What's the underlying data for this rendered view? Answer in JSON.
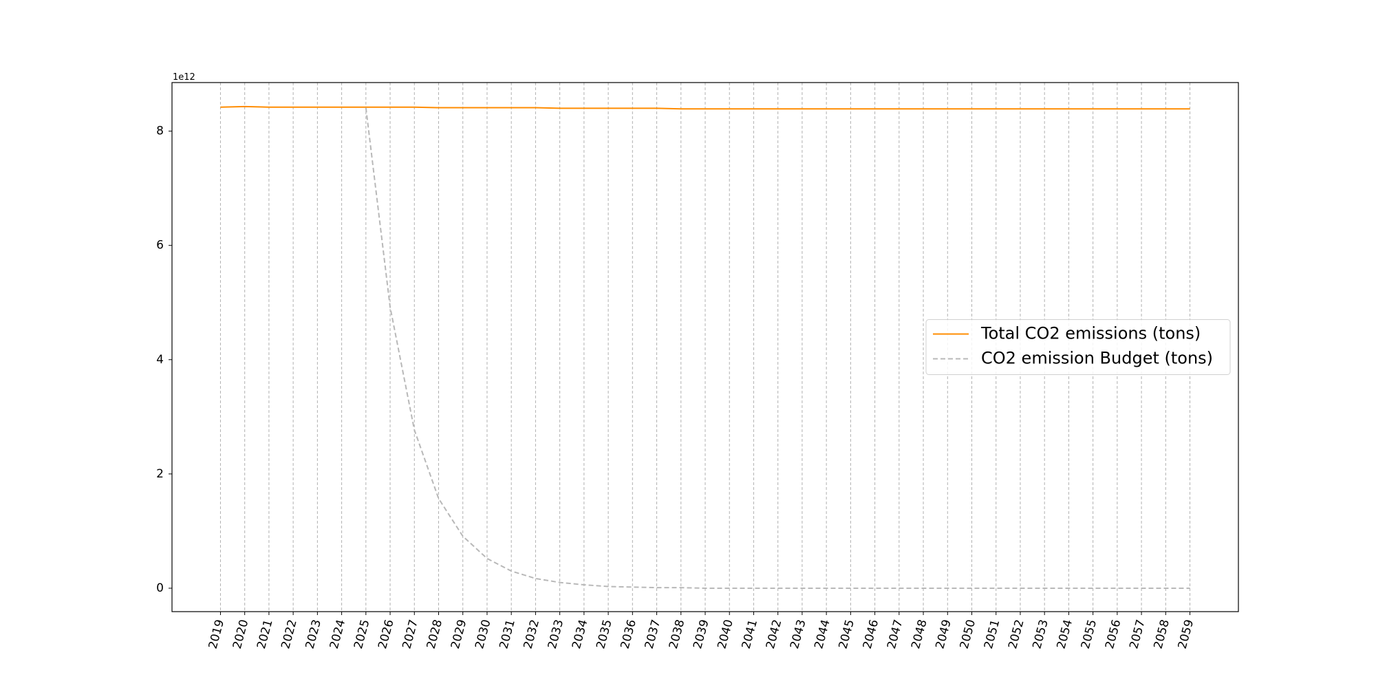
{
  "chart_data": {
    "type": "line",
    "y_offset_label": "1e12",
    "x": [
      2019,
      2020,
      2021,
      2022,
      2023,
      2024,
      2025,
      2026,
      2027,
      2028,
      2029,
      2030,
      2031,
      2032,
      2033,
      2034,
      2035,
      2036,
      2037,
      2038,
      2039,
      2040,
      2041,
      2042,
      2043,
      2044,
      2045,
      2046,
      2047,
      2048,
      2049,
      2050,
      2051,
      2052,
      2053,
      2054,
      2055,
      2056,
      2057,
      2058,
      2059
    ],
    "xticks": [
      2019,
      2020,
      2021,
      2022,
      2023,
      2024,
      2025,
      2026,
      2027,
      2028,
      2029,
      2030,
      2031,
      2032,
      2033,
      2034,
      2035,
      2036,
      2037,
      2038,
      2039,
      2040,
      2041,
      2042,
      2043,
      2044,
      2045,
      2046,
      2047,
      2048,
      2049,
      2050,
      2051,
      2052,
      2053,
      2054,
      2055,
      2056,
      2057,
      2058,
      2059
    ],
    "xlim": [
      2017,
      2061
    ],
    "ylim": [
      -0.41,
      8.85
    ],
    "yticks": [
      0,
      2,
      4,
      6,
      8
    ],
    "grid_x": true,
    "legend": "center right",
    "series": [
      {
        "name": "Total CO2 emissions (tons)",
        "color": "#ff8c00",
        "dash": false,
        "values": [
          8.42,
          8.43,
          8.42,
          8.42,
          8.42,
          8.42,
          8.42,
          8.42,
          8.42,
          8.41,
          8.41,
          8.41,
          8.41,
          8.41,
          8.4,
          8.4,
          8.4,
          8.4,
          8.4,
          8.39,
          8.39,
          8.39,
          8.39,
          8.39,
          8.39,
          8.39,
          8.39,
          8.39,
          8.39,
          8.39,
          8.39,
          8.39,
          8.39,
          8.39,
          8.39,
          8.39,
          8.39,
          8.39,
          8.39,
          8.39,
          8.39
        ]
      },
      {
        "name": "CO2 emission Budget (tons)",
        "color": "#b8b8b8",
        "dash": true,
        "values": [
          null,
          null,
          null,
          null,
          null,
          null,
          8.41,
          4.92,
          2.77,
          1.57,
          0.91,
          0.52,
          0.3,
          0.17,
          0.1,
          0.06,
          0.03,
          0.02,
          0.01,
          0.01,
          0,
          0,
          0,
          0,
          0,
          0,
          0,
          0,
          0,
          0,
          0,
          0,
          0,
          0,
          0,
          0,
          0,
          0,
          0,
          0,
          0
        ]
      }
    ]
  }
}
